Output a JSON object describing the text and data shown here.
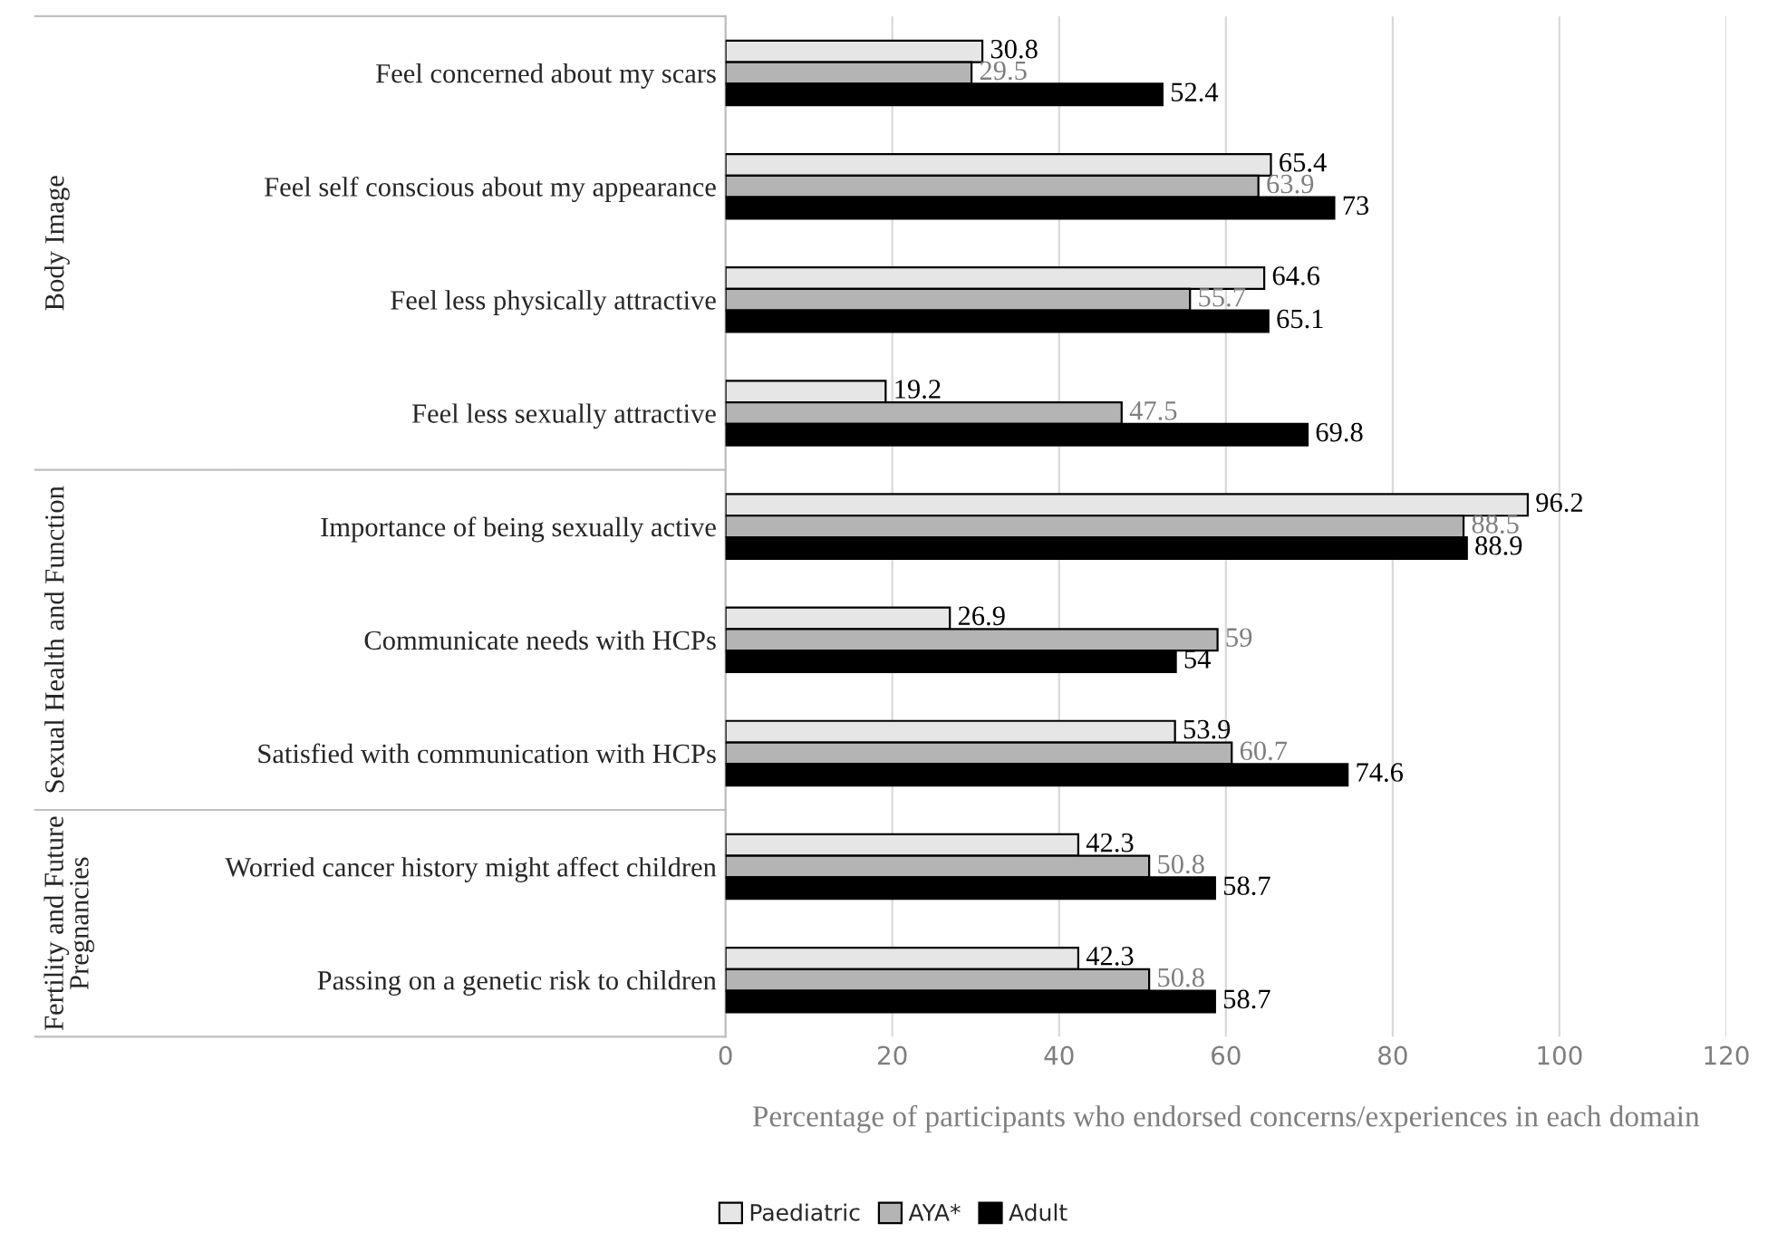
{
  "chart_data": {
    "type": "bar",
    "orientation": "horizontal",
    "categories": [
      "Feel concerned about my scars",
      "Feel self conscious about my appearance",
      "Feel less physically attractive",
      "Feel less sexually attractive",
      "Importance of being sexually active",
      "Communicate needs with HCPs",
      "Satisfied with communication with HCPs",
      "Worried cancer history might affect children",
      "Passing on a genetic risk to children"
    ],
    "series": [
      {
        "name": "Paediatric",
        "color": "#e7e6e6",
        "values": [
          30.8,
          65.4,
          64.6,
          19.2,
          96.2,
          26.9,
          53.9,
          42.3,
          42.3
        ]
      },
      {
        "name": "AYA*",
        "color": "#b4b4b4",
        "values": [
          29.5,
          63.9,
          55.7,
          47.5,
          88.5,
          59,
          60.7,
          50.8,
          50.8
        ]
      },
      {
        "name": "Adult",
        "color": "#000000",
        "values": [
          52.4,
          73,
          65.1,
          69.8,
          88.9,
          54,
          74.6,
          58.7,
          58.7
        ]
      }
    ],
    "xlim": [
      0,
      120
    ],
    "xticks": [
      0,
      20,
      40,
      60,
      80,
      100,
      120
    ],
    "xlabel": "Percentage of participants who endorsed concerns/experiences in each domain",
    "data_labels": true,
    "grid": "x",
    "legend": "bottom",
    "annotations": [
      "Body Image",
      "Sexual Health and Function",
      "Fertility and Future Pregnancies"
    ]
  }
}
